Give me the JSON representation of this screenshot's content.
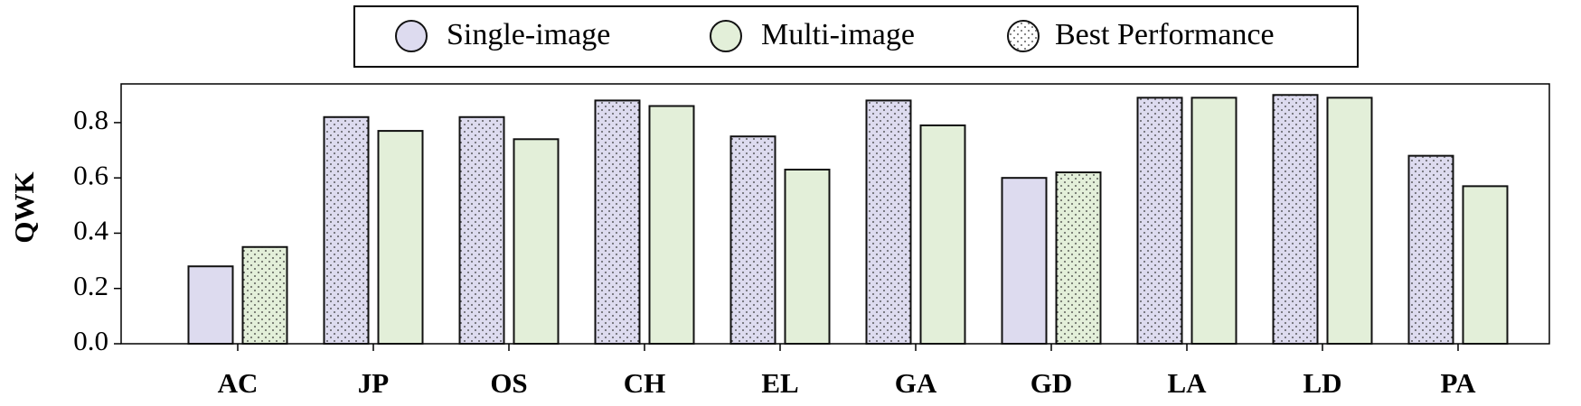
{
  "chart_data": {
    "type": "bar",
    "categories": [
      "AC",
      "JP",
      "OS",
      "CH",
      "EL",
      "GA",
      "GD",
      "LA",
      "LD",
      "PA"
    ],
    "series": [
      {
        "name": "Single-image",
        "color": "#dddbef",
        "values": [
          0.28,
          0.82,
          0.82,
          0.88,
          0.75,
          0.88,
          0.6,
          0.89,
          0.9,
          0.68
        ],
        "hatched": [
          false,
          true,
          true,
          true,
          true,
          true,
          false,
          true,
          true,
          true
        ]
      },
      {
        "name": "Multi-image",
        "color": "#e3efd9",
        "values": [
          0.35,
          0.77,
          0.74,
          0.86,
          0.63,
          0.79,
          0.62,
          0.89,
          0.89,
          0.57
        ],
        "hatched": [
          true,
          false,
          false,
          false,
          false,
          false,
          true,
          false,
          false,
          false
        ]
      }
    ],
    "pattern_legend": "Best Performance",
    "ylabel": "QWK",
    "ylim": [
      0,
      0.94
    ],
    "yticks": [
      {
        "value": 0,
        "label": "0.0"
      },
      0.2,
      0.4,
      0.6,
      0.8
    ],
    "grid": false
  }
}
